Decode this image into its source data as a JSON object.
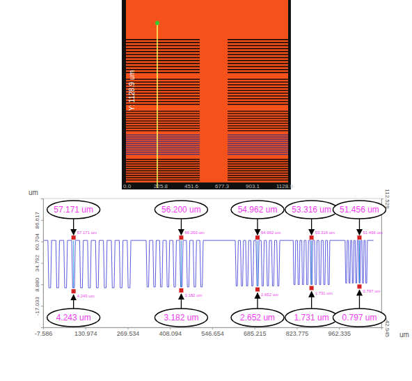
{
  "image": {
    "y_label": "Y: 1128.9 um",
    "x_ticks": [
      "0.0",
      "225.8",
      "451.6",
      "677.3",
      "903.1",
      "1128.9"
    ]
  },
  "chart_data": {
    "type": "line",
    "color": "#5b5be0",
    "grid": false,
    "x_label": "um",
    "y_label": "um",
    "xlim": [
      -7.586,
      1100.895
    ],
    "xticks": [
      -7.586,
      130.974,
      269.534,
      408.094,
      546.654,
      685.215,
      823.775,
      962.335
    ],
    "ylim": [
      -42.945,
      112.529
    ],
    "yticks": [
      86.617,
      60.704,
      34.792,
      {
        "value": 8.88,
        "label": "8.880"
      },
      -17.033
    ],
    "y2lim": [
      -42.945,
      112.529
    ],
    "y2ticks": [
      -42.945,
      112.529
    ],
    "x": [
      -5,
      8,
      11,
      17,
      20,
      34,
      37,
      43,
      46,
      60,
      63,
      69,
      72,
      86,
      89,
      95,
      98,
      112,
      115,
      121,
      124,
      138,
      141,
      147,
      150,
      164,
      167,
      173,
      176,
      190,
      193,
      199,
      202,
      216,
      219,
      225,
      228,
      242,
      245,
      251,
      254,
      268,
      271,
      277,
      280,
      330,
      333,
      338,
      341,
      352,
      355,
      360,
      363,
      374,
      377,
      382,
      385,
      396,
      399,
      404,
      407,
      418,
      421,
      426,
      429,
      440,
      443,
      448,
      451,
      462,
      465,
      470,
      473,
      484,
      487,
      492,
      495,
      506,
      509,
      514,
      517,
      622,
      625,
      629,
      632,
      639,
      642,
      646,
      649,
      656,
      659,
      663,
      666,
      673,
      676,
      680,
      683,
      690,
      693,
      697,
      700,
      707,
      710,
      714,
      717,
      724,
      727,
      731,
      734,
      741,
      744,
      748,
      751,
      758,
      761,
      765,
      768,
      812,
      814,
      818,
      820,
      826,
      828,
      832,
      834,
      840,
      842,
      846,
      848,
      854,
      856,
      860,
      862,
      868,
      870,
      874,
      876,
      882,
      884,
      888,
      890,
      896,
      898,
      902,
      904,
      910,
      912,
      916,
      918,
      924,
      926,
      930,
      932,
      982,
      984,
      987,
      989,
      993,
      995,
      998,
      1000,
      1004,
      1006,
      1009,
      1011,
      1015,
      1017,
      1020,
      1022,
      1026,
      1028,
      1031,
      1033,
      1037,
      1039,
      1042,
      1044,
      1048,
      1050,
      1053,
      1055,
      1075
    ],
    "values": [
      62,
      62,
      4.8,
      4.8,
      62,
      62,
      4.8,
      4.8,
      62,
      62,
      4.8,
      4.8,
      62,
      62,
      4.8,
      4.8,
      62,
      62,
      4.8,
      4.8,
      62,
      62,
      4.8,
      4.8,
      62,
      62,
      4.8,
      4.8,
      62,
      62,
      4.8,
      4.8,
      62,
      62,
      4.8,
      4.8,
      62,
      62,
      4.8,
      4.8,
      62,
      62,
      4.8,
      4.8,
      62,
      62,
      5.8,
      5.8,
      62,
      62,
      5.8,
      5.8,
      62,
      62,
      5.8,
      5.8,
      62,
      62,
      5.8,
      5.8,
      62,
      62,
      5.8,
      5.8,
      62,
      62,
      5.8,
      5.8,
      62,
      62,
      5.8,
      5.8,
      62,
      62,
      5.8,
      5.8,
      62,
      62,
      5.8,
      5.8,
      62,
      62,
      7,
      7,
      62,
      62,
      7,
      7,
      62,
      62,
      7,
      7,
      62,
      62,
      7,
      7,
      62,
      62,
      7,
      7,
      62,
      62,
      7,
      7,
      62,
      62,
      7,
      7,
      62,
      62,
      7,
      7,
      62,
      62,
      7,
      7,
      62,
      62,
      8.7,
      8.7,
      62,
      62,
      8.7,
      8.7,
      62,
      62,
      8.7,
      8.7,
      62,
      62,
      8.7,
      8.7,
      62,
      62,
      8.7,
      8.7,
      62,
      62,
      8.7,
      8.7,
      62,
      62,
      8.7,
      8.7,
      62,
      62,
      8.7,
      8.7,
      62,
      62,
      8.7,
      8.7,
      62,
      62,
      10.5,
      10.5,
      62,
      62,
      10.5,
      10.5,
      62,
      62,
      10.5,
      10.5,
      62,
      62,
      10.5,
      10.5,
      62,
      62,
      10.5,
      10.5,
      62,
      62,
      10.5,
      10.5,
      62,
      62,
      10.5,
      10.5,
      62,
      62
    ],
    "annotations": [
      {
        "x": 92,
        "y": [
          62,
          4.8
        ],
        "depth": "57.171 um",
        "width": "4.243 um"
      },
      {
        "x": 445,
        "y": [
          62,
          5.8
        ],
        "depth": "56.200 um",
        "width": "3.182 um"
      },
      {
        "x": 695,
        "y": [
          62,
          7
        ],
        "depth": "54.962 um",
        "width": "2.652 um"
      },
      {
        "x": 872,
        "y": [
          62,
          8.7
        ],
        "depth": "53.316 um",
        "width": "1.731 um"
      },
      {
        "x": 1029,
        "y": [
          62,
          10.5
        ],
        "depth": "51.456 um",
        "width": "0.797 um"
      }
    ]
  }
}
